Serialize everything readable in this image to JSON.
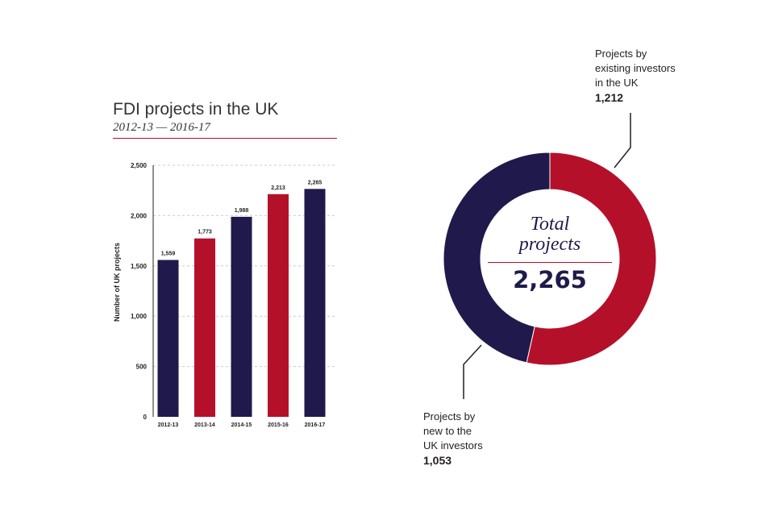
{
  "chart_data": [
    {
      "type": "bar",
      "title": "FDI projects in the UK",
      "subtitle": "2012-13 — 2016-17",
      "xlabel": "",
      "ylabel": "Number of UK projects",
      "ylim": [
        0,
        2500
      ],
      "yticks": [
        0,
        500,
        1000,
        1500,
        2000,
        2500
      ],
      "ytick_labels": [
        "0",
        "500",
        "1,000",
        "1,500",
        "2,000",
        "2,500"
      ],
      "categories": [
        "2012-13",
        "2013-14",
        "2014-15",
        "2015-16",
        "2016-17"
      ],
      "values": [
        1559,
        1773,
        1988,
        2213,
        2265
      ],
      "value_labels": [
        "1,559",
        "1,773",
        "1,988",
        "2,213",
        "2,265"
      ],
      "bar_colors": [
        "#1f1a4b",
        "#b5102a",
        "#1f1a4b",
        "#b5102a",
        "#1f1a4b"
      ],
      "grid": true
    },
    {
      "type": "pie",
      "subtype": "donut",
      "center_title_line1": "Total",
      "center_title_line2": "projects",
      "center_value": "2,265",
      "slices": [
        {
          "label": "Projects by existing investors in the UK",
          "label_lines": [
            "Projects by",
            "existing investors",
            "in the UK"
          ],
          "value": 1212,
          "value_label": "1,212",
          "color": "#b5102a"
        },
        {
          "label": "Projects by new to the UK investors",
          "label_lines": [
            "Projects by",
            "new to the",
            "UK investors"
          ],
          "value": 1053,
          "value_label": "1,053",
          "color": "#1f1a4b"
        }
      ]
    }
  ],
  "colors": {
    "navy": "#1f1a4b",
    "red": "#b5102a",
    "grid": "#cccccc",
    "text": "#231f20"
  }
}
